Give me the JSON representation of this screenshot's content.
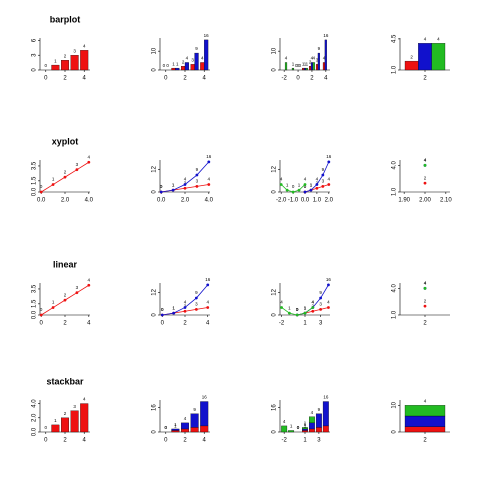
{
  "chart_data": [
    {
      "type": "bar",
      "title": "barplot",
      "x": [
        0,
        1,
        2,
        3,
        4
      ],
      "series": [
        {
          "color": "#ee1111",
          "values": [
            0,
            1,
            2,
            3,
            4
          ]
        }
      ],
      "xlim": [
        -0.6,
        4.6
      ],
      "ylim": [
        0,
        6.5
      ],
      "xticks": [
        0,
        2,
        4
      ],
      "yticks": [
        0,
        3,
        6
      ]
    },
    {
      "type": "bar",
      "x": [
        0,
        1,
        2,
        3,
        4
      ],
      "series": [
        {
          "color": "#ee1111",
          "values": [
            0,
            1,
            2,
            3,
            4
          ]
        },
        {
          "color": "#1111cc",
          "values": [
            0,
            1,
            4,
            9,
            16
          ]
        }
      ],
      "xlim": [
        -0.6,
        4.6
      ],
      "ylim": [
        0,
        17
      ],
      "xticks": [
        0,
        2,
        4
      ],
      "yticks": [
        0,
        10
      ]
    },
    {
      "type": "bar",
      "x": [
        -2,
        -1,
        0,
        1,
        2,
        3,
        4
      ],
      "series": [
        {
          "color": "#ee1111",
          "values": [
            null,
            null,
            0,
            1,
            2,
            3,
            4
          ]
        },
        {
          "color": "#1111cc",
          "values": [
            null,
            null,
            0,
            1,
            4,
            9,
            16
          ]
        },
        {
          "color": "#22bb22",
          "values": [
            4,
            1,
            0,
            1,
            4,
            null,
            null
          ]
        }
      ],
      "xlim": [
        -2.6,
        4.6
      ],
      "ylim": [
        0,
        17
      ],
      "xticks": [
        -2,
        0,
        2,
        4
      ],
      "yticks": [
        0,
        10
      ]
    },
    {
      "type": "bar",
      "x": [
        2
      ],
      "series": [
        {
          "color": "#ee1111",
          "values": [
            2
          ]
        },
        {
          "color": "#1111cc",
          "values": [
            4
          ]
        },
        {
          "color": "#22bb22",
          "values": [
            4
          ]
        }
      ],
      "xlim": [
        1.5,
        2.5
      ],
      "ylim": [
        1,
        4.6
      ],
      "xticks": [
        2
      ],
      "yticks": [
        {
          "value": 1,
          "label": "1.0"
        },
        4.5
      ]
    },
    {
      "type": "line",
      "title": "xyplot",
      "x": [
        0,
        1,
        2,
        3,
        4
      ],
      "series": [
        {
          "color": "#ee1111",
          "values": [
            0,
            1,
            2,
            3,
            4
          ]
        }
      ],
      "xlim": [
        -0.1,
        4.1
      ],
      "ylim": [
        0,
        4.3
      ],
      "xticks": [
        {
          "value": 0,
          "label": "0.0"
        },
        {
          "value": 2,
          "label": "2.0"
        },
        {
          "value": 4,
          "label": "4.0"
        }
      ],
      "yticks": [
        {
          "value": 0,
          "label": "0.0"
        },
        1.5,
        3.5
      ]
    },
    {
      "type": "line",
      "x": [
        0,
        1,
        2,
        3,
        4
      ],
      "series": [
        {
          "color": "#ee1111",
          "values": [
            0,
            1,
            2,
            3,
            4
          ]
        },
        {
          "color": "#1111cc",
          "values": [
            0,
            1,
            4,
            9,
            16
          ]
        }
      ],
      "xlim": [
        -0.1,
        4.1
      ],
      "ylim": [
        0,
        17
      ],
      "xticks": [
        {
          "value": 0,
          "label": "0.0"
        },
        {
          "value": 2,
          "label": "2.0"
        },
        {
          "value": 4,
          "label": "4.0"
        }
      ],
      "yticks": [
        0,
        12
      ]
    },
    {
      "type": "line",
      "x": [
        -2,
        -1.5,
        -1,
        -0.5,
        0,
        0.5,
        1,
        1.5,
        2
      ],
      "series": [
        {
          "color": "#ee1111",
          "values": [
            null,
            null,
            null,
            null,
            0,
            1,
            2,
            3,
            4
          ]
        },
        {
          "color": "#1111cc",
          "values": [
            null,
            null,
            null,
            null,
            0,
            1,
            4,
            9,
            16
          ]
        },
        {
          "color": "#22bb22",
          "values": [
            4,
            1,
            0,
            1,
            4,
            null,
            null,
            null,
            null
          ]
        }
      ],
      "xlim": [
        -2.1,
        2.1
      ],
      "ylim": [
        0,
        17
      ],
      "xticks": [
        {
          "value": -2,
          "label": "-2.0"
        },
        {
          "value": -1,
          "label": "-1.0"
        },
        {
          "value": 0,
          "label": "0.0"
        },
        {
          "value": 1,
          "label": "1.0"
        },
        {
          "value": 2,
          "label": "2.0"
        }
      ],
      "yticks": [
        0,
        12
      ]
    },
    {
      "type": "line",
      "x": [
        2
      ],
      "series": [
        {
          "color": "#ee1111",
          "values": [
            2
          ]
        },
        {
          "color": "#1111cc",
          "values": [
            4
          ]
        },
        {
          "color": "#22bb22",
          "values": [
            4
          ]
        }
      ],
      "xlim": [
        1.88,
        2.12
      ],
      "ylim": [
        1,
        4.6
      ],
      "xticks": [
        {
          "value": 1.9,
          "label": "1.90"
        },
        {
          "value": 2,
          "label": "2.00"
        },
        {
          "value": 2.1,
          "label": "2.10"
        }
      ],
      "yticks": [
        {
          "value": 1,
          "label": "1.0"
        },
        {
          "value": 4,
          "label": "4.0"
        }
      ]
    },
    {
      "type": "line",
      "title": "linear",
      "x": [
        0,
        1,
        2,
        3,
        4
      ],
      "series": [
        {
          "color": "#ee1111",
          "values": [
            0,
            1,
            2,
            3,
            4
          ]
        }
      ],
      "xlim": [
        -0.1,
        4.1
      ],
      "ylim": [
        0,
        4.3
      ],
      "xticks": [
        0,
        2,
        4
      ],
      "yticks": [
        {
          "value": 0,
          "label": "0.0"
        },
        1.5,
        3.5
      ]
    },
    {
      "type": "line",
      "x": [
        0,
        1,
        2,
        3,
        4
      ],
      "series": [
        {
          "color": "#ee1111",
          "values": [
            0,
            1,
            2,
            3,
            4
          ]
        },
        {
          "color": "#1111cc",
          "values": [
            0,
            1,
            4,
            9,
            16
          ]
        }
      ],
      "xlim": [
        -0.2,
        4.2
      ],
      "ylim": [
        0,
        17
      ],
      "xticks": [
        0,
        2,
        4
      ],
      "yticks": [
        0,
        12
      ]
    },
    {
      "type": "line",
      "x": [
        -2,
        -1,
        0,
        1,
        2,
        3,
        4
      ],
      "series": [
        {
          "color": "#ee1111",
          "values": [
            null,
            null,
            0,
            1,
            2,
            3,
            4
          ]
        },
        {
          "color": "#1111cc",
          "values": [
            null,
            null,
            0,
            1,
            4,
            9,
            16
          ]
        },
        {
          "color": "#22bb22",
          "values": [
            4,
            1,
            0,
            1,
            4,
            null,
            null
          ]
        }
      ],
      "xlim": [
        -2.2,
        4.2
      ],
      "ylim": [
        0,
        17
      ],
      "xticks": [
        -2,
        1,
        3
      ],
      "yticks": [
        0,
        12
      ]
    },
    {
      "type": "line",
      "x": [
        2
      ],
      "series": [
        {
          "color": "#ee1111",
          "values": [
            2
          ]
        },
        {
          "color": "#1111cc",
          "values": [
            4
          ]
        },
        {
          "color": "#22bb22",
          "values": [
            4
          ]
        }
      ],
      "xlim": [
        1.8,
        2.2
      ],
      "ylim": [
        1,
        4.6
      ],
      "xticks": [
        2
      ],
      "yticks": [
        {
          "value": 1,
          "label": "1.0"
        },
        {
          "value": 4,
          "label": "4.0"
        }
      ]
    },
    {
      "type": "bar",
      "stacked": true,
      "title": "stackbar",
      "x": [
        0,
        1,
        2,
        3,
        4
      ],
      "series": [
        {
          "color": "#ee1111",
          "values": [
            0,
            1,
            2,
            3,
            4
          ]
        }
      ],
      "xlim": [
        -0.6,
        4.6
      ],
      "ylim": [
        0,
        4.5
      ],
      "xticks": [
        0,
        2,
        4
      ],
      "yticks": [
        {
          "value": 0,
          "label": "0.0"
        },
        {
          "value": 2,
          "label": "2.0"
        },
        {
          "value": 4,
          "label": "4.0"
        }
      ]
    },
    {
      "type": "bar",
      "stacked": true,
      "x": [
        0,
        1,
        2,
        3,
        4
      ],
      "series": [
        {
          "color": "#ee1111",
          "values": [
            0,
            1,
            2,
            3,
            4
          ]
        },
        {
          "color": "#1111cc",
          "values": [
            0,
            1,
            4,
            9,
            16
          ]
        }
      ],
      "xlim": [
        -0.6,
        4.6
      ],
      "ylim": [
        0,
        21
      ],
      "xticks": [
        0,
        2,
        4
      ],
      "yticks": [
        0,
        16
      ]
    },
    {
      "type": "bar",
      "stacked": true,
      "x": [
        -2,
        -1,
        0,
        1,
        2,
        3,
        4
      ],
      "series": [
        {
          "color": "#ee1111",
          "values": [
            null,
            null,
            0,
            1,
            2,
            3,
            4
          ]
        },
        {
          "color": "#1111cc",
          "values": [
            null,
            null,
            0,
            1,
            4,
            9,
            16
          ]
        },
        {
          "color": "#22bb22",
          "values": [
            4,
            1,
            0,
            1,
            4,
            null,
            null
          ]
        }
      ],
      "xlim": [
        -2.6,
        4.6
      ],
      "ylim": [
        0,
        21
      ],
      "xticks": [
        -2,
        1,
        3
      ],
      "yticks": [
        0,
        16
      ]
    },
    {
      "type": "bar",
      "stacked": true,
      "x": [
        2
      ],
      "series": [
        {
          "color": "#ee1111",
          "values": [
            2
          ]
        },
        {
          "color": "#1111cc",
          "values": [
            4
          ]
        },
        {
          "color": "#22bb22",
          "values": [
            4
          ]
        }
      ],
      "xlim": [
        1.5,
        2.5
      ],
      "ylim": [
        0,
        12
      ],
      "xticks": [
        2
      ],
      "yticks": [
        0,
        10
      ]
    }
  ]
}
